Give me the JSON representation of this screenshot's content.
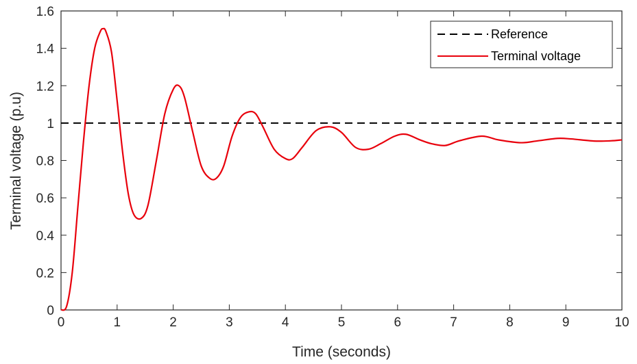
{
  "chart_data": {
    "type": "line",
    "xlabel": "Time (seconds)",
    "ylabel": "Terminal voltage (p.u)",
    "xlim": [
      0,
      10
    ],
    "ylim": [
      0,
      1.6
    ],
    "xticks": [
      "0",
      "1",
      "2",
      "3",
      "4",
      "5",
      "6",
      "7",
      "8",
      "9",
      "10"
    ],
    "yticks": [
      "0",
      "0.2",
      "0.4",
      "0.6",
      "0.8",
      "1",
      "1.2",
      "1.4",
      "1.6"
    ],
    "grid": false,
    "legend_position": "top-right",
    "colors": {
      "reference": "#000000",
      "terminal": "#e8000b"
    },
    "series": [
      {
        "name": "Reference",
        "style": "dashed",
        "x": [
          0,
          10
        ],
        "y": [
          1,
          1
        ]
      },
      {
        "name": "Terminal voltage",
        "style": "solid",
        "x": [
          0,
          0.1,
          0.2,
          0.3,
          0.4,
          0.5,
          0.6,
          0.7,
          0.75,
          0.8,
          0.9,
          1.0,
          1.1,
          1.2,
          1.3,
          1.43,
          1.55,
          1.7,
          1.85,
          2.0,
          2.1,
          2.2,
          2.35,
          2.5,
          2.65,
          2.77,
          2.9,
          3.05,
          3.2,
          3.35,
          3.47,
          3.6,
          3.8,
          4.0,
          4.13,
          4.3,
          4.55,
          4.8,
          5.0,
          5.25,
          5.48,
          5.7,
          5.95,
          6.15,
          6.4,
          6.6,
          6.85,
          7.1,
          7.5,
          7.8,
          8.2,
          8.5,
          8.85,
          9.1,
          9.5,
          9.8,
          10.0
        ],
        "y": [
          0,
          0.02,
          0.2,
          0.55,
          0.9,
          1.2,
          1.4,
          1.49,
          1.505,
          1.49,
          1.38,
          1.12,
          0.84,
          0.62,
          0.51,
          0.49,
          0.56,
          0.8,
          1.05,
          1.18,
          1.2,
          1.14,
          0.95,
          0.77,
          0.705,
          0.705,
          0.77,
          0.93,
          1.03,
          1.06,
          1.05,
          0.98,
          0.86,
          0.81,
          0.81,
          0.87,
          0.96,
          0.98,
          0.95,
          0.87,
          0.86,
          0.89,
          0.93,
          0.94,
          0.91,
          0.89,
          0.88,
          0.905,
          0.93,
          0.91,
          0.895,
          0.905,
          0.918,
          0.915,
          0.904,
          0.905,
          0.91
        ]
      }
    ]
  }
}
